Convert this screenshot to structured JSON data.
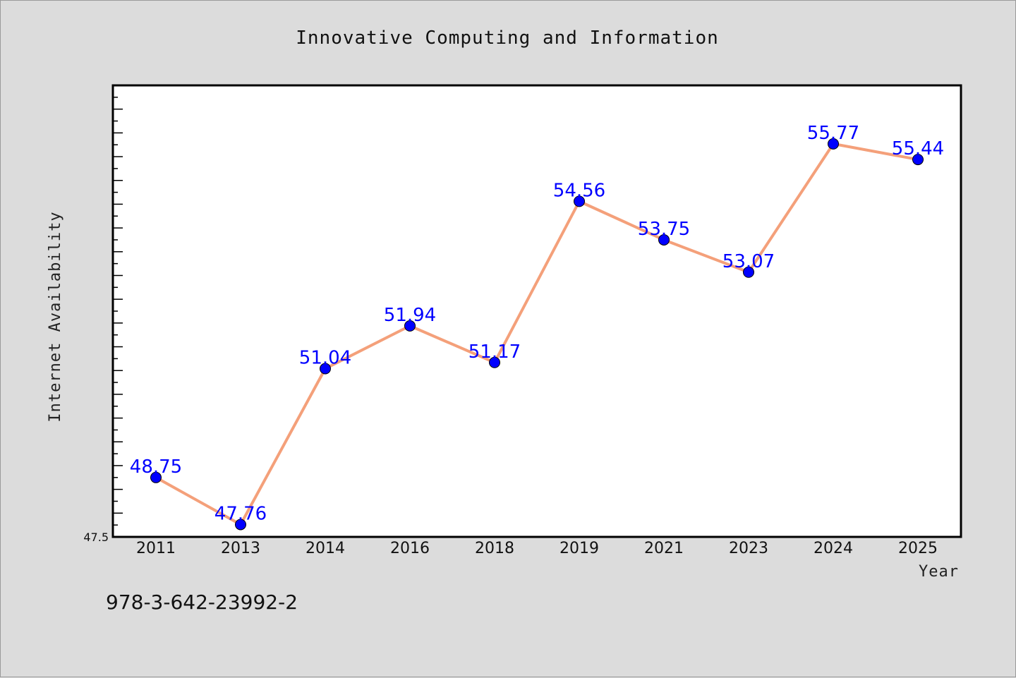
{
  "chart_data": {
    "type": "line",
    "title": "Innovative Computing and Information",
    "xlabel": "Year",
    "ylabel": "Internet Availability",
    "categories": [
      "2011",
      "2013",
      "2014",
      "2016",
      "2018",
      "2019",
      "2021",
      "2023",
      "2024",
      "2025"
    ],
    "series": [
      {
        "values": [
          48.75,
          47.76,
          51.04,
          51.94,
          51.17,
          54.56,
          53.75,
          53.07,
          55.77,
          55.44
        ],
        "labels": [
          "48.75",
          "47.76",
          "51.04",
          "51.94",
          "51.17",
          "54.56",
          "53.75",
          "53.07",
          "55.77",
          "55.44"
        ],
        "line_color": "#f4a07a",
        "marker_color": "#0000ff"
      }
    ],
    "ylim": [
      47.5,
      57.0
    ],
    "y_min_label": "47.5",
    "grid": false,
    "legend": "none"
  },
  "footer": {
    "isbn": "978-3-642-23992-2"
  },
  "colors": {
    "background": "#dcdcdc",
    "plot_area": "#ffffff",
    "label_color": "#0000ff"
  }
}
